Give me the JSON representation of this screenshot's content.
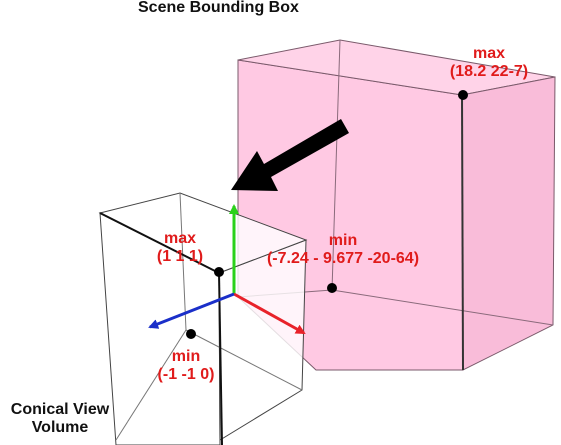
{
  "title": "Scene Bounding Box",
  "scene_box": {
    "max_label": "max",
    "max_value": "(18.2 22-7)",
    "min_label": "min",
    "min_value": "(-7.24 - 9.677 -20-64)",
    "fill_color": "#ffc9e3"
  },
  "view_volume": {
    "max_label": "max",
    "max_value": "(1 1 1)",
    "min_label": "min",
    "min_value": "(-1 -1 0)",
    "caption_line1": "Conical View",
    "caption_line2": "Volume"
  },
  "colors": {
    "label_red": "#e01b1b",
    "axis_x": "#e8222a",
    "axis_y": "#2ad11a",
    "axis_z": "#1a2fc9"
  }
}
